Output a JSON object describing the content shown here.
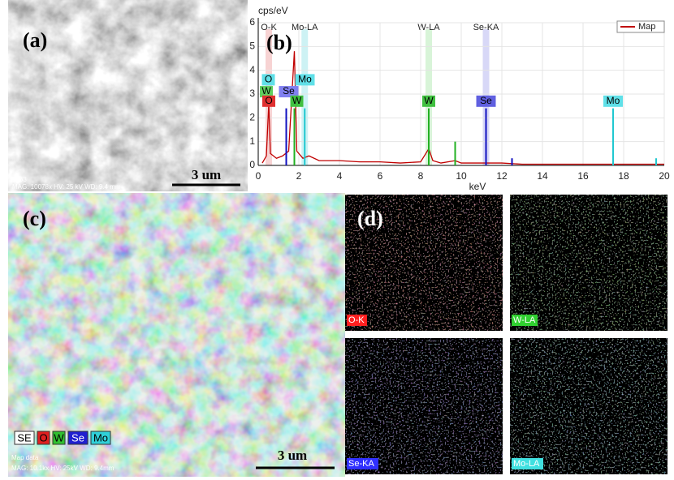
{
  "panels": {
    "a": {
      "label": "(a)",
      "scale_bar": "3 um",
      "info": "9363",
      "footer": "MAG: 10078x  HV: 25 kV  WD: 9.4 mm"
    },
    "c": {
      "label": "(c)",
      "scale_bar": "3 um",
      "legend": [
        "SE",
        "O",
        "W",
        "Se",
        "Mo"
      ],
      "footer_title": "Map data",
      "footer": "MAG: 10.1kx  HV: 25kV  WD: 9.4mm"
    },
    "d": {
      "label": "(d)",
      "tiles": [
        "O-K",
        "W-LA",
        "Se-KA",
        "Mo-LA"
      ]
    }
  },
  "chart_data": {
    "type": "line",
    "panel_label": "(b)",
    "y_label": "cps/eV",
    "x_label": "keV",
    "xlim": [
      0,
      20
    ],
    "ylim": [
      0,
      6
    ],
    "xticks": [
      0,
      2,
      4,
      6,
      8,
      10,
      12,
      14,
      16,
      18,
      20
    ],
    "yticks": [
      0,
      1,
      2,
      3,
      4,
      5,
      6
    ],
    "grid": true,
    "legend": "upper right",
    "series": [
      {
        "name": "Map",
        "color": "#c00000",
        "style": "line",
        "x": [
          0.2,
          0.4,
          0.52,
          0.6,
          0.9,
          1.2,
          1.5,
          1.78,
          1.9,
          2.2,
          2.5,
          3,
          4,
          5,
          6,
          7,
          8,
          8.4,
          8.6,
          9,
          9.7,
          10,
          11,
          12,
          13,
          14,
          16,
          18,
          20
        ],
        "values": [
          0.1,
          0.4,
          2.6,
          0.5,
          0.3,
          0.4,
          0.6,
          4.8,
          0.6,
          0.3,
          0.4,
          0.2,
          0.2,
          0.15,
          0.15,
          0.1,
          0.15,
          0.7,
          0.2,
          0.1,
          0.2,
          0.1,
          0.1,
          0.1,
          0.05,
          0.05,
          0.05,
          0.05,
          0.05
        ]
      },
      {
        "name": "W",
        "color": "#22b022",
        "style": "stem",
        "x": [
          1.78,
          8.4,
          9.7
        ],
        "values": [
          2.4,
          2.4,
          1.0
        ]
      },
      {
        "name": "Se",
        "color": "#1010c0",
        "style": "stem",
        "x": [
          1.38,
          11.22,
          12.5
        ],
        "values": [
          2.4,
          2.4,
          0.3
        ]
      },
      {
        "name": "Mo",
        "color": "#20c8d0",
        "style": "stem",
        "x": [
          2.29,
          17.48,
          19.6
        ],
        "values": [
          2.4,
          2.4,
          0.3
        ]
      }
    ],
    "lines": [
      {
        "text": "O-K",
        "x": 0.52,
        "color": "#f4c0c0"
      },
      {
        "text": "Mo-LA",
        "x": 2.29,
        "color": "#b8ecf0"
      },
      {
        "text": "W-LA",
        "x": 8.4,
        "color": "#c8f0c8"
      },
      {
        "text": "Se-KA",
        "x": 11.22,
        "color": "#c8c8f4"
      }
    ],
    "annotations": [
      {
        "text": "O",
        "x": 0.5,
        "y": 3.6,
        "color": "#60e0e8"
      },
      {
        "text": "W",
        "x": 0.4,
        "y": 3.1,
        "color": "#60d060"
      },
      {
        "text": "Se",
        "x": 1.5,
        "y": 3.1,
        "color": "#8080f0"
      },
      {
        "text": "Mo",
        "x": 2.3,
        "y": 3.6,
        "color": "#60e0e8"
      },
      {
        "text": "O",
        "x": 0.52,
        "y": 2.7,
        "color": "#e03030"
      },
      {
        "text": "W",
        "x": 1.9,
        "y": 2.7,
        "color": "#40c040"
      },
      {
        "text": "W",
        "x": 8.4,
        "y": 2.7,
        "color": "#40c040"
      },
      {
        "text": "Se",
        "x": 11.22,
        "y": 2.7,
        "color": "#6060e0"
      },
      {
        "text": "Mo",
        "x": 17.48,
        "y": 2.7,
        "color": "#60e0e8"
      }
    ]
  }
}
